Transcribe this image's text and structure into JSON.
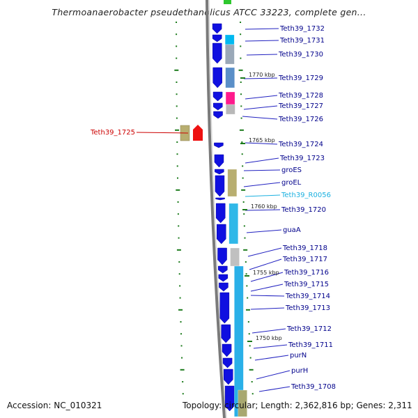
{
  "header": {
    "title": "Thermoanaerobacter pseudethanolicus ATCC 33223, complete gen..."
  },
  "footer": {
    "accession": "Accession: NC_010321",
    "topology": "Topology: circular; Length: 2,362,816 bp; Genes: 2,311"
  },
  "colors": {
    "gene_arrow": "#1010e0",
    "tick": "#1a7a1a",
    "label_default": "#00008b",
    "label_selected": "#cc0000",
    "label_rna": "#1ab0e0",
    "backbone": "#7a7a7a"
  },
  "kbp_markers": [
    "1770 kbp",
    "1765 kbp",
    "1760 kbp",
    "1755 kbp",
    "1750 kbp"
  ],
  "gene_labels": [
    "Teth39_1732",
    "Teth39_1731",
    "Teth39_1730",
    "Teth39_1729",
    "Teth39_1728",
    "Teth39_1727",
    "Teth39_1726",
    "Teth39_1724",
    "Teth39_1723",
    "groES",
    "groEL",
    "Teth39_R0056",
    "Teth39_1720",
    "guaA",
    "Teth39_1718",
    "Teth39_1717",
    "Teth39_1716",
    "Teth39_1715",
    "Teth39_1714",
    "Teth39_1713",
    "Teth39_1712",
    "Teth39_1711",
    "purN",
    "purH",
    "Teth39_1708"
  ],
  "selected_gene_label": "Teth39_1725"
}
